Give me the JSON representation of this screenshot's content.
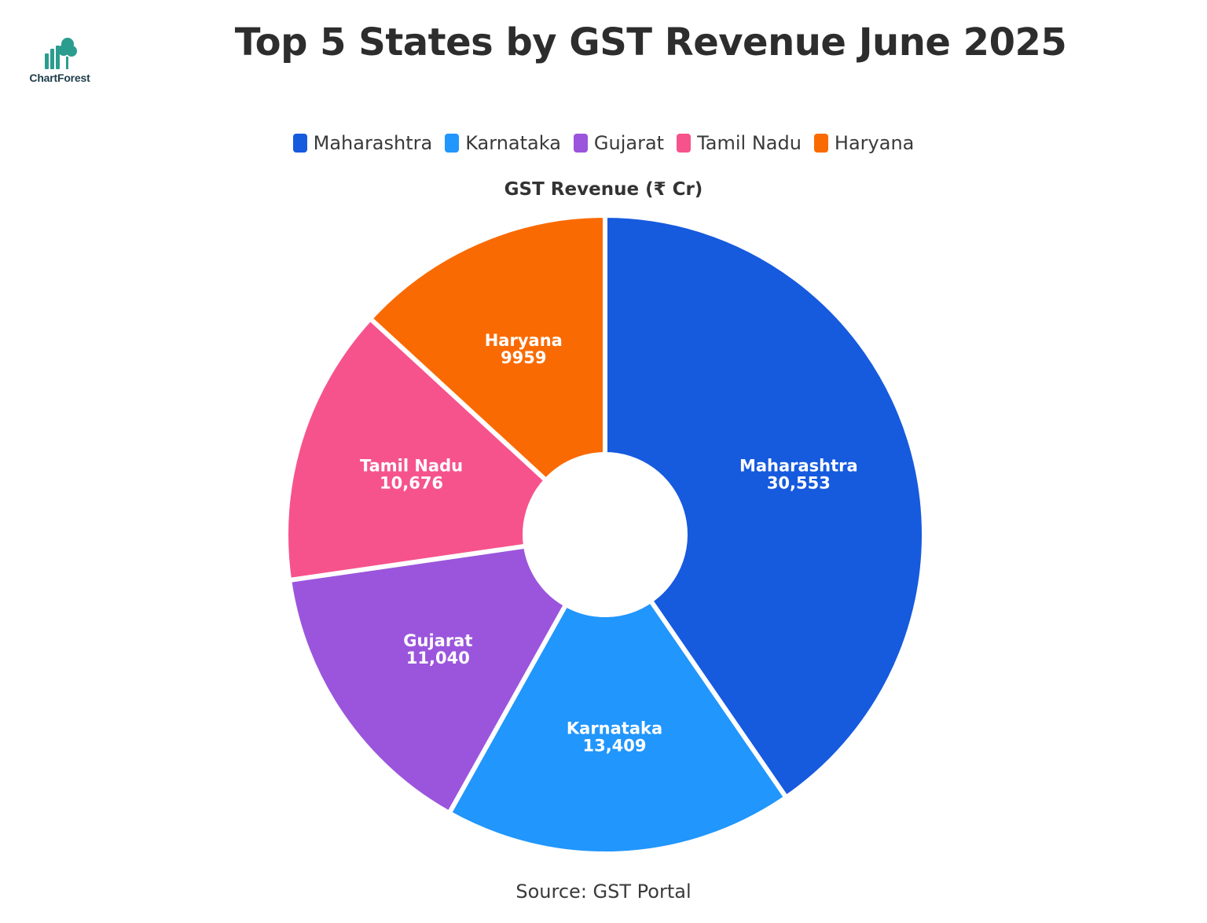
{
  "brand": {
    "logo_text": "ChartForest",
    "logo_icon": "bar-chart-tree-icon",
    "logo_color": "#2a9d8f"
  },
  "chart_data": {
    "type": "pie",
    "style": "donut",
    "title": "Top 5 States by GST Revenue June 2025",
    "subtitle": "GST Revenue (₹ Cr)",
    "source": "Source: GST Portal",
    "legend_position": "top",
    "categories": [
      "Maharashtra",
      "Karnataka",
      "Gujarat",
      "Tamil Nadu",
      "Haryana"
    ],
    "values": [
      30553,
      13409,
      11040,
      10676,
      9959
    ],
    "value_labels": [
      "30,553",
      "13,409",
      "11,040",
      "10,676",
      "9959"
    ],
    "colors": [
      "#165ADE",
      "#2196FC",
      "#9B55DC",
      "#F6538C",
      "#FA6A02"
    ]
  }
}
